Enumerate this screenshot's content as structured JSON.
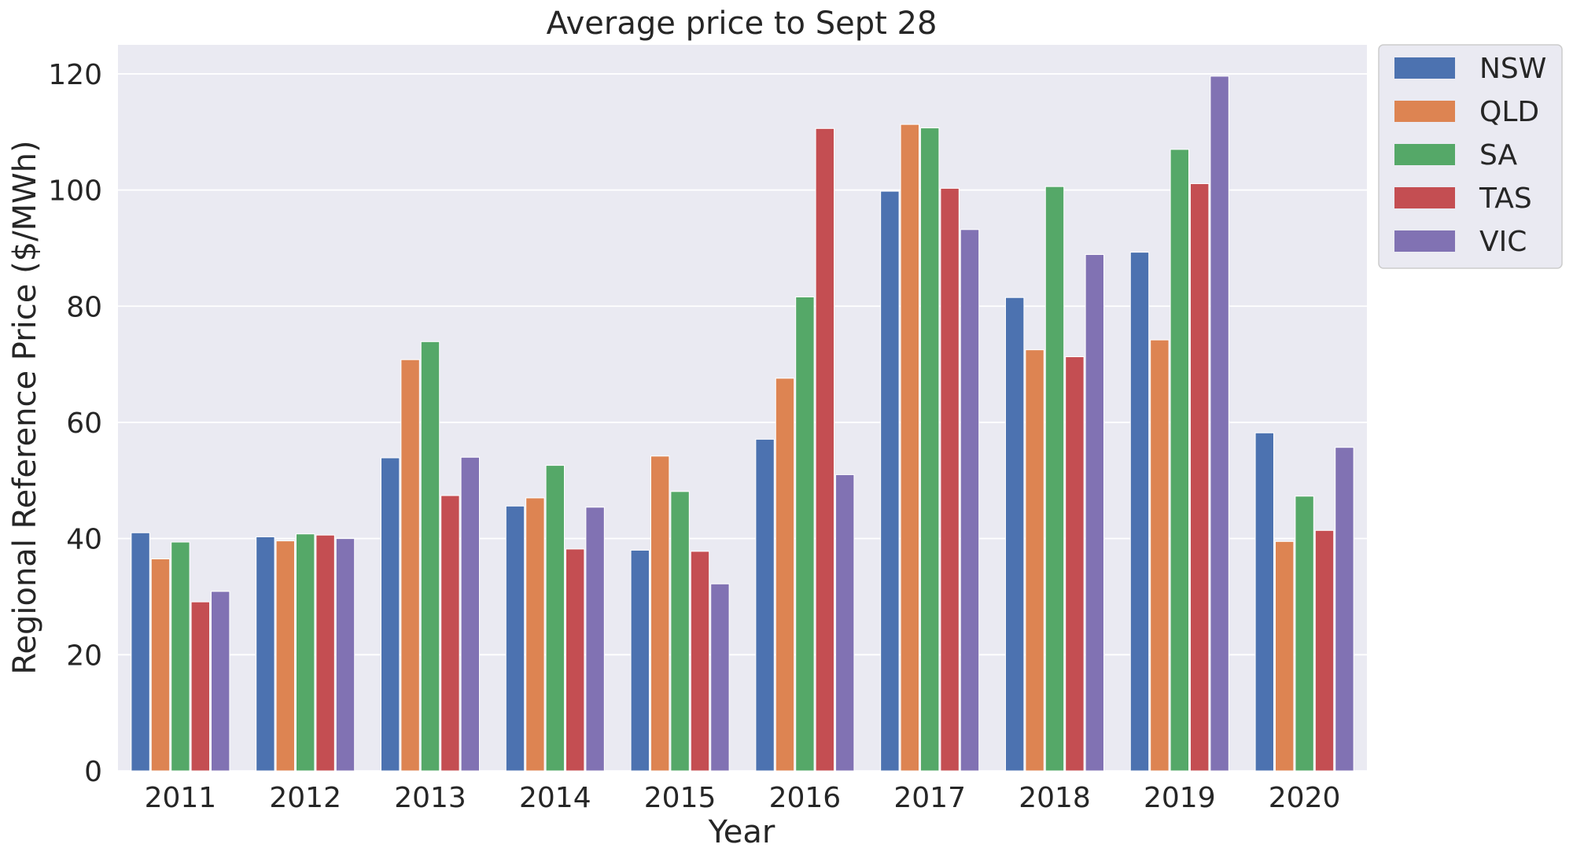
{
  "chart_data": {
    "type": "bar",
    "title": "Average price to Sept 28",
    "xlabel": "Year",
    "ylabel": "Regional Reference Price ($/MWh)",
    "ylim": [
      0,
      125
    ],
    "yticks": [
      0,
      20,
      40,
      60,
      80,
      100,
      120
    ],
    "grid": true,
    "legend_position": "outside-top-right",
    "categories": [
      "2011",
      "2012",
      "2013",
      "2014",
      "2015",
      "2016",
      "2017",
      "2018",
      "2019",
      "2020"
    ],
    "series": [
      {
        "name": "NSW",
        "color": "#4c72b0",
        "values": [
          41.0,
          40.3,
          53.9,
          45.6,
          38.0,
          57.1,
          99.8,
          81.5,
          89.3,
          58.2
        ]
      },
      {
        "name": "QLD",
        "color": "#dd8452",
        "values": [
          36.5,
          39.6,
          70.8,
          47.0,
          54.2,
          67.6,
          111.3,
          72.5,
          74.2,
          39.5
        ]
      },
      {
        "name": "SA",
        "color": "#55a868",
        "values": [
          39.4,
          40.8,
          73.9,
          52.6,
          48.1,
          81.6,
          110.7,
          100.6,
          107.0,
          47.3
        ]
      },
      {
        "name": "TAS",
        "color": "#c44e52",
        "values": [
          29.1,
          40.6,
          47.4,
          38.2,
          37.8,
          110.6,
          100.3,
          71.3,
          101.1,
          41.4
        ]
      },
      {
        "name": "VIC",
        "color": "#8172b3",
        "values": [
          30.9,
          40.0,
          54.0,
          45.4,
          32.2,
          51.0,
          93.2,
          88.9,
          119.6,
          55.7
        ]
      }
    ]
  }
}
